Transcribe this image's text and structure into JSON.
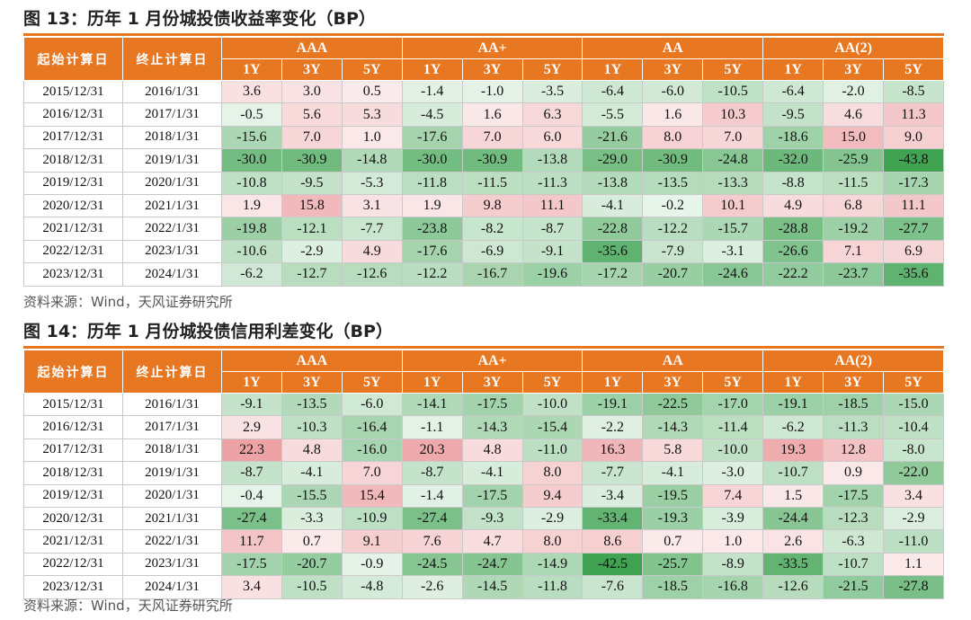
{
  "columns": {
    "start": "起始计算日",
    "end": "终止计算日",
    "groups": [
      "AAA",
      "AA+",
      "AA",
      "AA(2)"
    ],
    "tenors": [
      "1Y",
      "3Y",
      "5Y"
    ]
  },
  "colors": {
    "header_bg": "#e87722",
    "positive": "#e06065",
    "negative": "#3fa352",
    "neutral": "#ffffff"
  },
  "fig13": {
    "title": "图 13：历年 1 月份城投债收益率变化（BP）",
    "source": "资料来源：Wind，天风证券研究所",
    "rows": [
      {
        "start": "2015/12/31",
        "end": "2016/1/31",
        "values": [
          "3.6",
          "3.0",
          "0.5",
          "-1.4",
          "-1.0",
          "-3.5",
          "-6.4",
          "-6.0",
          "-10.5",
          "-6.4",
          "-2.0",
          "-8.5"
        ]
      },
      {
        "start": "2016/12/31",
        "end": "2017/1/31",
        "values": [
          "-0.5",
          "5.6",
          "5.3",
          "-4.5",
          "1.6",
          "6.3",
          "-5.5",
          "1.6",
          "10.3",
          "-9.5",
          "4.6",
          "11.3"
        ]
      },
      {
        "start": "2017/12/31",
        "end": "2018/1/31",
        "values": [
          "-15.6",
          "7.0",
          "1.0",
          "-17.6",
          "7.0",
          "6.0",
          "-21.6",
          "8.0",
          "7.0",
          "-18.6",
          "15.0",
          "9.0"
        ]
      },
      {
        "start": "2018/12/31",
        "end": "2019/1/31",
        "values": [
          "-30.0",
          "-30.9",
          "-14.8",
          "-30.0",
          "-30.9",
          "-13.8",
          "-29.0",
          "-30.9",
          "-24.8",
          "-32.0",
          "-25.9",
          "-43.8"
        ]
      },
      {
        "start": "2019/12/31",
        "end": "2020/1/31",
        "values": [
          "-10.8",
          "-9.5",
          "-5.3",
          "-11.8",
          "-11.5",
          "-11.3",
          "-13.8",
          "-13.5",
          "-13.3",
          "-8.8",
          "-11.5",
          "-17.3"
        ]
      },
      {
        "start": "2020/12/31",
        "end": "2021/1/31",
        "values": [
          "1.9",
          "15.8",
          "3.1",
          "1.9",
          "9.8",
          "11.1",
          "-4.1",
          "-0.2",
          "10.1",
          "4.9",
          "6.8",
          "11.1"
        ]
      },
      {
        "start": "2021/12/31",
        "end": "2022/1/31",
        "values": [
          "-19.8",
          "-12.1",
          "-7.7",
          "-23.8",
          "-8.2",
          "-8.7",
          "-22.8",
          "-12.2",
          "-15.7",
          "-28.8",
          "-19.2",
          "-27.7"
        ]
      },
      {
        "start": "2022/12/31",
        "end": "2023/1/31",
        "values": [
          "-10.6",
          "-2.9",
          "4.9",
          "-17.6",
          "-6.9",
          "-9.1",
          "-35.6",
          "-7.9",
          "-3.1",
          "-26.6",
          "7.1",
          "6.9"
        ]
      },
      {
        "start": "2023/12/31",
        "end": "2024/1/31",
        "values": [
          "-6.2",
          "-12.7",
          "-12.6",
          "-12.2",
          "-16.7",
          "-19.6",
          "-17.2",
          "-20.7",
          "-24.6",
          "-22.2",
          "-23.7",
          "-35.6"
        ]
      }
    ]
  },
  "fig14": {
    "title": "图 14：历年 1 月份城投债信用利差变化（BP）",
    "source": "资料来源：Wind，天风证券研究所",
    "rows": [
      {
        "start": "2015/12/31",
        "end": "2016/1/31",
        "values": [
          "-9.1",
          "-13.5",
          "-6.0",
          "-14.1",
          "-17.5",
          "-10.0",
          "-19.1",
          "-22.5",
          "-17.0",
          "-19.1",
          "-18.5",
          "-15.0"
        ]
      },
      {
        "start": "2016/12/31",
        "end": "2017/1/31",
        "values": [
          "2.9",
          "-10.3",
          "-16.4",
          "-1.1",
          "-14.3",
          "-15.4",
          "-2.2",
          "-14.3",
          "-11.4",
          "-6.2",
          "-11.3",
          "-10.4"
        ]
      },
      {
        "start": "2017/12/31",
        "end": "2018/1/31",
        "values": [
          "22.3",
          "4.8",
          "-16.0",
          "20.3",
          "4.8",
          "-11.0",
          "16.3",
          "5.8",
          "-10.0",
          "19.3",
          "12.8",
          "-8.0"
        ]
      },
      {
        "start": "2018/12/31",
        "end": "2019/1/31",
        "values": [
          "-8.7",
          "-4.1",
          "7.0",
          "-8.7",
          "-4.1",
          "8.0",
          "-7.7",
          "-4.1",
          "-3.0",
          "-10.7",
          "0.9",
          "-22.0"
        ]
      },
      {
        "start": "2019/12/31",
        "end": "2020/1/31",
        "values": [
          "-0.4",
          "-15.5",
          "15.4",
          "-1.4",
          "-17.5",
          "9.4",
          "-3.4",
          "-19.5",
          "7.4",
          "1.5",
          "-17.5",
          "3.4"
        ]
      },
      {
        "start": "2020/12/31",
        "end": "2021/1/31",
        "values": [
          "-27.4",
          "-3.3",
          "-10.9",
          "-27.4",
          "-9.3",
          "-2.9",
          "-33.4",
          "-19.3",
          "-3.9",
          "-24.4",
          "-12.3",
          "-2.9"
        ]
      },
      {
        "start": "2021/12/31",
        "end": "2022/1/31",
        "values": [
          "11.7",
          "0.7",
          "9.1",
          "7.6",
          "4.7",
          "8.0",
          "8.6",
          "0.7",
          "1.0",
          "2.6",
          "-6.3",
          "-11.0"
        ]
      },
      {
        "start": "2022/12/31",
        "end": "2023/1/31",
        "values": [
          "-17.5",
          "-20.7",
          "-0.9",
          "-24.5",
          "-24.7",
          "-14.9",
          "-42.5",
          "-25.7",
          "-8.9",
          "-33.5",
          "-10.7",
          "1.1"
        ]
      },
      {
        "start": "2023/12/31",
        "end": "2024/1/31",
        "values": [
          "3.4",
          "-10.5",
          "-4.8",
          "-2.6",
          "-14.5",
          "-11.8",
          "-7.6",
          "-18.5",
          "-16.8",
          "-12.6",
          "-21.5",
          "-27.8"
        ]
      }
    ]
  }
}
